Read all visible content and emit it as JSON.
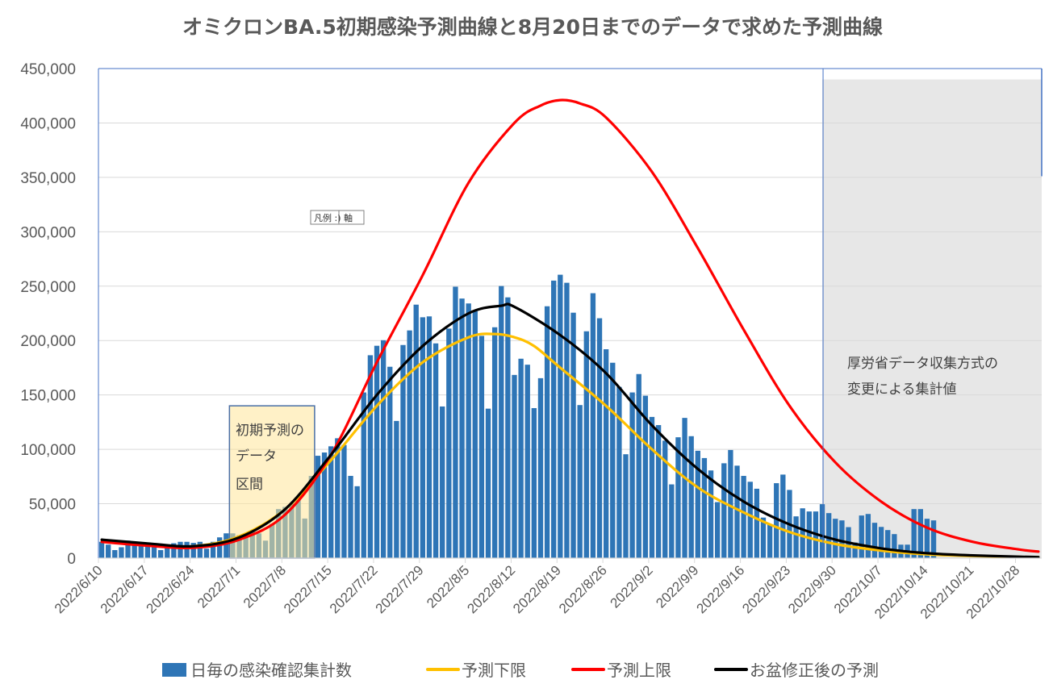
{
  "chart_data": {
    "type": "bar",
    "title": "オミクロンBA.5初期感染予測曲線と8月20日までのデータで求めた予測曲線",
    "xlabel": "",
    "ylabel": "",
    "ylim": [
      0,
      450000
    ],
    "yticks": [
      0,
      50000,
      100000,
      150000,
      200000,
      250000,
      300000,
      350000,
      400000,
      450000
    ],
    "ytick_labels": [
      "0",
      "50,000",
      "100,000",
      "150,000",
      "200,000",
      "250,000",
      "300,000",
      "350,000",
      "400,000",
      "450,000"
    ],
    "x_start": "2022/6/10",
    "x_end": "2022/10/31",
    "x_days": 144,
    "xtick_labels": [
      "2022/6/10",
      "2022/6/17",
      "2022/6/24",
      "2022/7/1",
      "2022/7/8",
      "2022/7/15",
      "2022/7/22",
      "2022/7/29",
      "2022/8/5",
      "2022/8/12",
      "2022/8/19",
      "2022/8/26",
      "2022/9/2",
      "2022/9/9",
      "2022/9/16",
      "2022/9/23",
      "2022/9/30",
      "2022/10/7",
      "2022/10/14",
      "2022/10/21",
      "2022/10/28"
    ],
    "grid": true,
    "legend_position": "bottom",
    "bars": {
      "name": "日毎の感染確認集計数",
      "color": "#2e75b6",
      "start_day": 0,
      "values": [
        15000,
        12400,
        7400,
        10000,
        16100,
        13700,
        13700,
        13700,
        12400,
        7400,
        11100,
        13700,
        15000,
        15000,
        14000,
        15000,
        8700,
        15000,
        19100,
        22800,
        22800,
        21100,
        21500,
        24800,
        22800,
        16100,
        31500,
        45100,
        47100,
        50300,
        53300,
        36400,
        75600,
        94100,
        97100,
        102800,
        110200,
        104000,
        75600,
        66100,
        152300,
        186500,
        195200,
        200300,
        175900,
        126100,
        195900,
        209300,
        233000,
        221400,
        222200,
        197400,
        139400,
        211000,
        249500,
        238600,
        234100,
        227000,
        204300,
        137400,
        212200,
        250100,
        239700,
        168400,
        183300,
        177800,
        137900,
        165400,
        231500,
        255100,
        260500,
        253100,
        225600,
        140700,
        208500,
        243500,
        220500,
        192000,
        179600,
        157400,
        95500,
        152300,
        169200,
        149300,
        129800,
        122300,
        108000,
        67800,
        111100,
        128900,
        112100,
        98700,
        92000,
        80600,
        51500,
        87200,
        99400,
        85000,
        75600,
        70200,
        63800,
        37300,
        31000,
        68900,
        76800,
        62700,
        38400,
        45800,
        42900,
        42900,
        49600,
        41400,
        36200,
        34700,
        28500,
        14400,
        39200,
        40600,
        32500,
        28700,
        25800,
        22100,
        12400,
        12400,
        45100,
        45100,
        36200,
        34700
      ]
    },
    "series": [
      {
        "name": "予測下限",
        "color": "#ffc000",
        "type": "line",
        "day": [
          0,
          7,
          14,
          21,
          28,
          35,
          42,
          49,
          56,
          60,
          63,
          66,
          70,
          77,
          84,
          91,
          98,
          105,
          112,
          119,
          126,
          133,
          140,
          143
        ],
        "values": [
          15000,
          12500,
          11000,
          20000,
          45000,
          90000,
          140000,
          180000,
          203000,
          206000,
          203000,
          195000,
          175000,
          140000,
          100000,
          65000,
          42000,
          24000,
          13000,
          7000,
          3500,
          2000,
          1100,
          900
        ]
      },
      {
        "name": "予測上限",
        "color": "#ff0000",
        "type": "line",
        "day": [
          0,
          7,
          14,
          21,
          28,
          35,
          42,
          49,
          56,
          63,
          67,
          70,
          73,
          77,
          84,
          91,
          98,
          105,
          112,
          119,
          126,
          133,
          140,
          143
        ],
        "values": [
          15000,
          11500,
          9500,
          17000,
          40000,
          95000,
          180000,
          260000,
          345000,
          400000,
          416000,
          421000,
          418000,
          405000,
          355000,
          285000,
          210000,
          140000,
          88000,
          52000,
          28000,
          15000,
          8000,
          6000
        ]
      },
      {
        "name": "お盆修正後の予測",
        "color": "#000000",
        "type": "line",
        "day": [
          0,
          7,
          14,
          21,
          28,
          35,
          42,
          49,
          56,
          61,
          63,
          70,
          77,
          84,
          91,
          98,
          105,
          112,
          119,
          126,
          133,
          140,
          143
        ],
        "values": [
          17000,
          13500,
          11000,
          19000,
          45000,
          95000,
          150000,
          195000,
          225000,
          232000,
          231000,
          205000,
          170000,
          122000,
          82000,
          52000,
          31000,
          17000,
          9000,
          4500,
          2500,
          1300,
          1000
        ]
      }
    ],
    "annotations": {
      "initial_box": {
        "lines": [
          "初期予測の",
          "データ",
          "区間"
        ],
        "start_day": 20,
        "end_day": 33,
        "top_value": 140000
      },
      "shaded_region": {
        "lines": [
          "厚労省データ収集方式の",
          "変更による集計値"
        ],
        "start_day": 110.5,
        "top_value": 440000
      },
      "legend_axis_tag": "凡例 :) 軸"
    }
  },
  "legend": {
    "items": [
      {
        "label": "日毎の感染確認集計数",
        "kind": "box",
        "color": "#2e75b6"
      },
      {
        "label": "予測下限",
        "kind": "line",
        "color": "#ffc000"
      },
      {
        "label": "予測上限",
        "kind": "line",
        "color": "#ff0000"
      },
      {
        "label": "お盆修正後の予測",
        "kind": "line",
        "color": "#000000"
      }
    ]
  },
  "colors": {
    "axis_border": "#4472c4",
    "grid": "#d9d9d9",
    "shade": "#e7e7e7",
    "box_fill": "#ffe699",
    "text": "#595959"
  }
}
